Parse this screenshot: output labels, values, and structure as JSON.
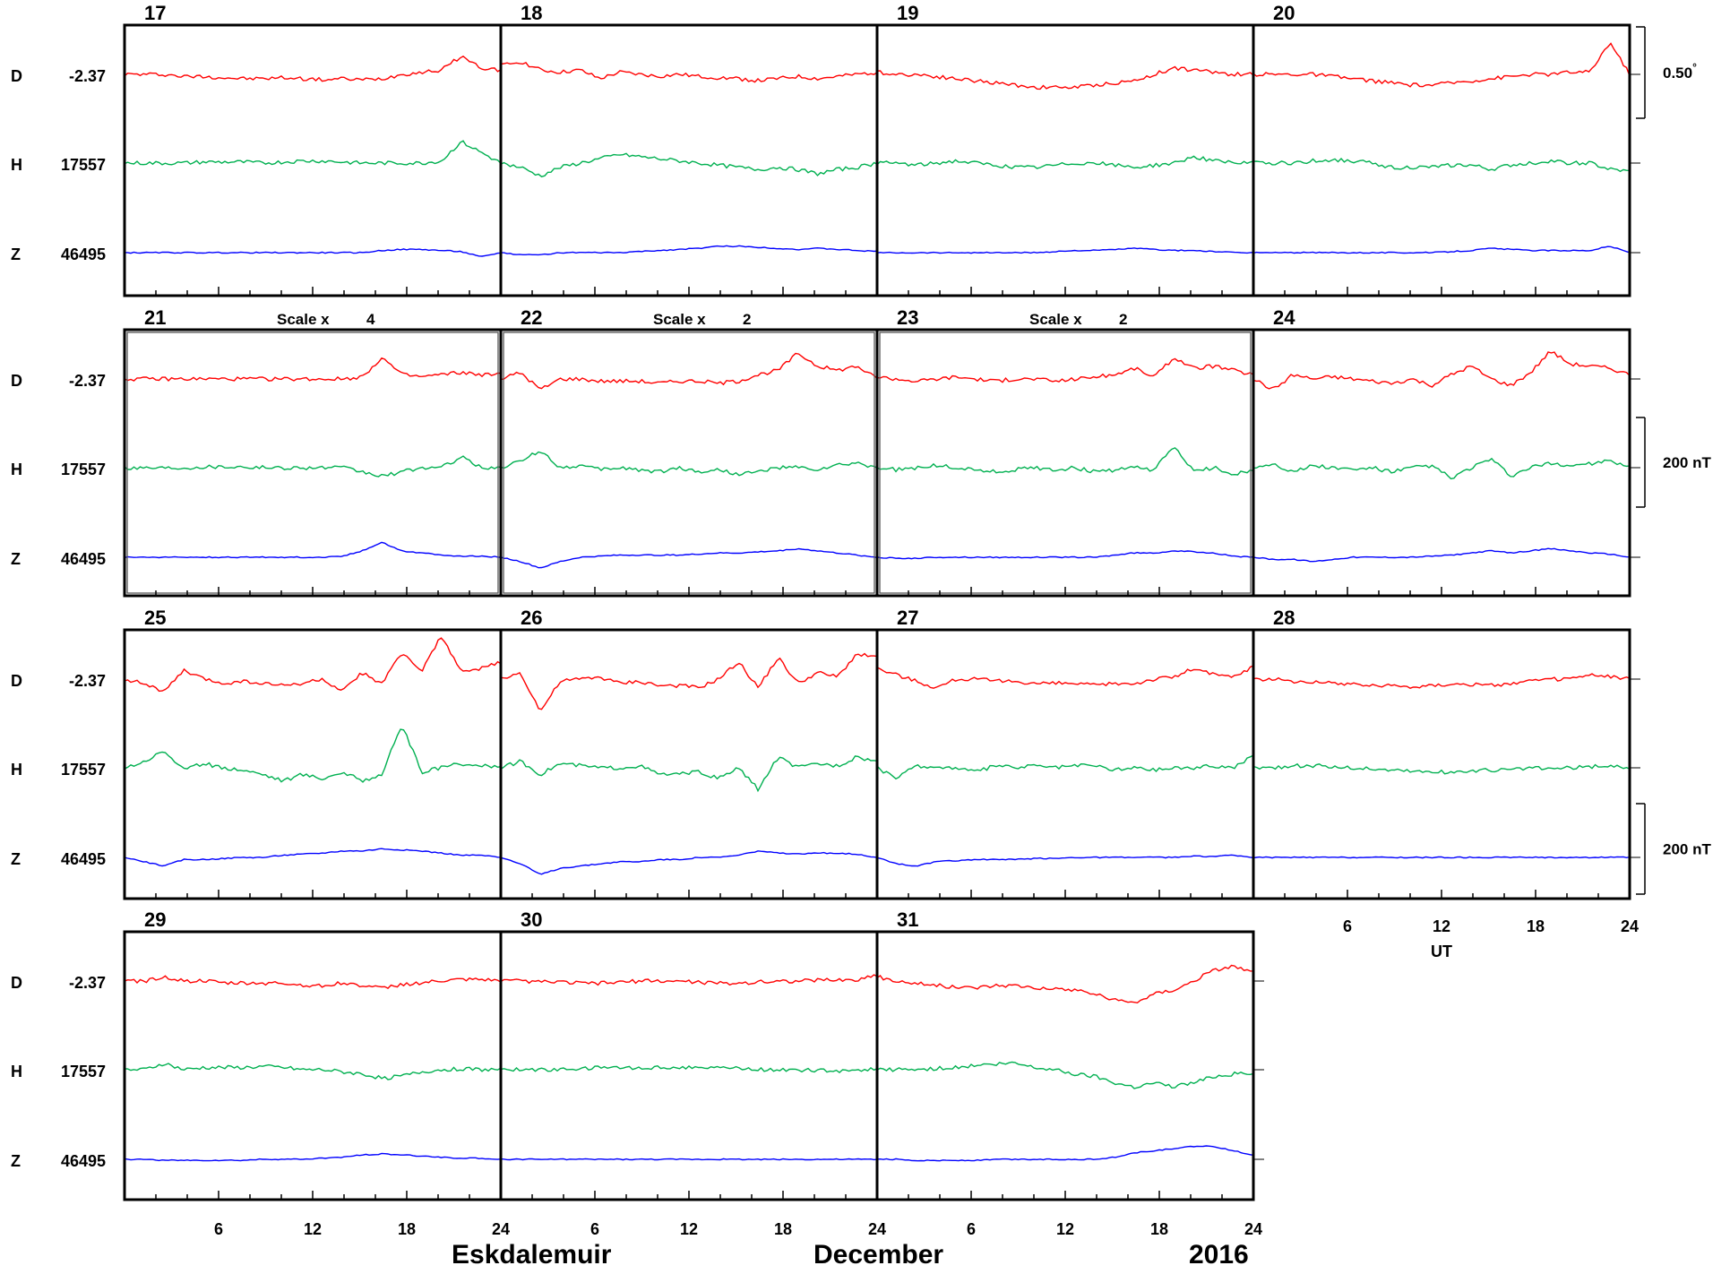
{
  "footer": {
    "station": "Eskdalemuir",
    "month": "December",
    "year": "2016"
  },
  "components": [
    {
      "name": "D",
      "baseline": "-2.37",
      "color": "#ff0000"
    },
    {
      "name": "H",
      "baseline": "17557",
      "color": "#00b050"
    },
    {
      "name": "Z",
      "baseline": "46495",
      "color": "#0000ff"
    }
  ],
  "scale_bars": [
    {
      "label": "0.50",
      "unit_mark": "°",
      "row": 0
    },
    {
      "label": "200 nT",
      "row": 1
    },
    {
      "label": "200 nT",
      "row": 2
    }
  ],
  "time_axis": {
    "label": "UT",
    "ticks": [
      "6",
      "12",
      "18",
      "24"
    ]
  },
  "chart_data": {
    "type": "line",
    "title": "",
    "xlabel": "UT",
    "xlim": [
      0,
      24
    ],
    "series": [
      {
        "name": "D",
        "baseline": -2.37
      },
      {
        "name": "H",
        "baseline": 17557
      },
      {
        "name": "Z",
        "baseline": 46495
      }
    ],
    "days": [
      {
        "day": "17",
        "D": [
          0,
          0,
          0,
          -0.1,
          -0.1,
          -0.15,
          -0.2,
          -0.2,
          -0.15,
          -0.2,
          -0.25,
          -0.2,
          -0.25,
          -0.2,
          0,
          0.1,
          0.2,
          0.85,
          0.3,
          0.2
        ],
        "H": [
          0,
          0,
          0,
          0,
          0.05,
          0.05,
          0.05,
          0,
          0.05,
          0.1,
          0.1,
          0.05,
          0,
          0,
          0,
          0,
          0.1,
          1.0,
          0.5,
          0
        ],
        "Z": [
          0,
          0,
          0,
          0,
          0,
          0,
          0,
          0,
          0,
          0,
          0,
          0,
          0,
          0.1,
          0.15,
          0.15,
          0.1,
          0.05,
          -0.2,
          0
        ]
      },
      {
        "day": "18",
        "D": [
          0.4,
          0.6,
          0.2,
          0.1,
          0.2,
          -0.2,
          0.1,
          0,
          -0.1,
          0,
          -0.1,
          -0.15,
          -0.2,
          -0.3,
          -0.2,
          -0.1,
          -0.2,
          -0.1,
          0,
          0.1
        ],
        "H": [
          0,
          -0.2,
          -0.6,
          -0.2,
          0,
          0.2,
          0.4,
          0.3,
          0.2,
          0.1,
          0,
          -0.1,
          -0.2,
          -0.3,
          -0.2,
          -0.3,
          -0.5,
          -0.3,
          -0.2,
          0
        ],
        "Z": [
          0,
          -0.1,
          -0.1,
          0,
          0,
          0,
          0,
          0.05,
          0.1,
          0.15,
          0.2,
          0.3,
          0.3,
          0.25,
          0.2,
          0.15,
          0.2,
          0.15,
          0.1,
          0.05
        ]
      },
      {
        "day": "19",
        "D": [
          0.1,
          0,
          0,
          -0.1,
          -0.2,
          -0.3,
          -0.4,
          -0.5,
          -0.6,
          -0.6,
          -0.6,
          -0.5,
          -0.4,
          -0.3,
          0,
          0.3,
          0.2,
          0.1,
          0,
          0
        ],
        "H": [
          0,
          0,
          -0.1,
          0,
          0.1,
          0,
          -0.1,
          -0.2,
          -0.2,
          -0.1,
          0,
          0,
          -0.1,
          -0.2,
          -0.1,
          0,
          0.3,
          0.1,
          0,
          0
        ],
        "Z": [
          0,
          0,
          0,
          0,
          0,
          0,
          0,
          0,
          0,
          0.05,
          0.1,
          0.1,
          0.15,
          0.2,
          0.15,
          0.1,
          0.1,
          0.05,
          0,
          0
        ]
      },
      {
        "day": "20",
        "D": [
          0,
          0,
          0,
          0,
          -0.1,
          -0.2,
          -0.3,
          -0.4,
          -0.5,
          -0.5,
          -0.4,
          -0.3,
          -0.2,
          -0.1,
          0,
          0,
          0.1,
          0.1,
          1.5,
          0
        ],
        "H": [
          0,
          0,
          0,
          0.1,
          0.15,
          0.1,
          0,
          -0.2,
          -0.2,
          -0.2,
          -0.1,
          -0.1,
          -0.3,
          -0.1,
          0,
          0.1,
          0,
          0,
          -0.3,
          -0.4
        ],
        "Z": [
          0,
          0,
          0,
          0,
          0,
          0,
          0,
          0,
          0,
          0,
          0.05,
          0.1,
          0.2,
          0.15,
          0.1,
          0.1,
          0.1,
          0.1,
          0.3,
          0
        ]
      },
      {
        "day": "21",
        "D": [
          0,
          0,
          0,
          0,
          0,
          0,
          0,
          0,
          0,
          0,
          0,
          0,
          0.1,
          1.0,
          0.2,
          0.1,
          0.2,
          0.3,
          0.2,
          0.2
        ],
        "H": [
          0,
          0,
          0,
          0,
          0.05,
          0.05,
          0.05,
          0,
          0,
          0,
          0,
          0,
          -0.2,
          -0.4,
          -0.2,
          0,
          0,
          0.5,
          0,
          0
        ],
        "Z": [
          0,
          0,
          0,
          0,
          0,
          0,
          0,
          0,
          0,
          0,
          0,
          0.05,
          0.3,
          0.7,
          0.3,
          0.2,
          0.1,
          0.05,
          0.05,
          0
        ]
      },
      {
        "day": "22",
        "D": [
          0,
          0.3,
          -0.5,
          0,
          0,
          -0.1,
          -0.1,
          -0.1,
          -0.2,
          -0.1,
          -0.1,
          -0.2,
          -0.1,
          0.2,
          0.4,
          1.2,
          0.6,
          0.4,
          0.6,
          0
        ],
        "H": [
          0,
          0.3,
          0.8,
          0,
          0.1,
          -0.1,
          0,
          -0.1,
          -0.2,
          0,
          -0.2,
          -0.1,
          -0.3,
          -0.2,
          0,
          0,
          -0.1,
          0.1,
          0.2,
          0
        ],
        "Z": [
          0,
          -0.2,
          -0.5,
          -0.2,
          0,
          0.05,
          0.1,
          0.1,
          0.1,
          0.1,
          0.15,
          0.2,
          0.2,
          0.25,
          0.3,
          0.4,
          0.3,
          0.2,
          0.1,
          0
        ]
      },
      {
        "day": "23",
        "D": [
          0.1,
          0,
          -0.1,
          0,
          0.1,
          0,
          -0.1,
          0,
          0,
          -0.1,
          0,
          0.1,
          0.2,
          0.5,
          0.1,
          1.0,
          0.5,
          0.6,
          0.4,
          0.2
        ],
        "H": [
          0,
          -0.1,
          0,
          0.1,
          0,
          -0.1,
          -0.2,
          -0.1,
          0,
          -0.1,
          0,
          -0.2,
          -0.1,
          0,
          -0.1,
          1.0,
          -0.2,
          0,
          -0.3,
          -0.1
        ],
        "Z": [
          0,
          -0.05,
          -0.05,
          0,
          0,
          0,
          0,
          0,
          0,
          0,
          0,
          0,
          0.1,
          0.2,
          0.2,
          0.3,
          0.25,
          0.2,
          0.05,
          0
        ]
      },
      {
        "day": "24",
        "D": [
          0,
          -0.5,
          0.2,
          0,
          0.1,
          0,
          -0.1,
          -0.2,
          0,
          -0.3,
          0.2,
          0.6,
          0,
          -0.3,
          0.3,
          1.3,
          0.7,
          0.6,
          0.5,
          0.2
        ],
        "H": [
          0,
          0.2,
          -0.2,
          0.1,
          0,
          -0.1,
          0,
          -0.2,
          0,
          0.1,
          -0.5,
          0,
          0.4,
          -0.4,
          0,
          0.2,
          0.1,
          0.2,
          0.3,
          0
        ],
        "Z": [
          0,
          -0.1,
          -0.1,
          -0.2,
          -0.1,
          0,
          0,
          0,
          0,
          0.05,
          0.1,
          0.2,
          0.3,
          0.2,
          0.3,
          0.4,
          0.3,
          0.2,
          0.15,
          0
        ]
      },
      {
        "day": "25",
        "D": [
          0,
          -0.2,
          -0.6,
          0.4,
          0,
          -0.2,
          -0.1,
          -0.2,
          -0.3,
          -0.2,
          0,
          -0.6,
          0.3,
          -0.2,
          1.2,
          0.4,
          2.0,
          0.3,
          0.5,
          0.8
        ],
        "H": [
          0,
          0.3,
          0.8,
          -0.1,
          0.2,
          0,
          -0.1,
          -0.3,
          -0.6,
          -0.3,
          -0.5,
          -0.2,
          -0.6,
          -0.3,
          2.0,
          -0.2,
          0,
          0.2,
          0.1,
          0
        ],
        "Z": [
          0,
          -0.2,
          -0.4,
          -0.1,
          -0.1,
          -0.05,
          0,
          0,
          0.1,
          0.15,
          0.2,
          0.3,
          0.3,
          0.4,
          0.35,
          0.3,
          0.2,
          0.1,
          0.1,
          0
        ]
      },
      {
        "day": "26",
        "D": [
          0,
          0.3,
          -1.5,
          -0.1,
          0,
          0.1,
          -0.2,
          -0.1,
          -0.3,
          -0.3,
          -0.4,
          0,
          0.8,
          -0.4,
          1.0,
          -0.2,
          0.3,
          0.1,
          1.2,
          1.0
        ],
        "H": [
          0,
          0.3,
          -0.3,
          0.2,
          0.1,
          0,
          0,
          0.1,
          -0.3,
          -0.3,
          -0.2,
          -0.5,
          0,
          -1.0,
          0.5,
          0,
          0.2,
          0.1,
          0.5,
          0.3
        ],
        "Z": [
          0,
          -0.3,
          -0.8,
          -0.5,
          -0.4,
          -0.3,
          -0.2,
          -0.2,
          -0.1,
          -0.1,
          0,
          0,
          0.1,
          0.3,
          0.2,
          0.15,
          0.2,
          0.2,
          0.15,
          0
        ]
      },
      {
        "day": "27",
        "D": [
          0.5,
          0.2,
          -0.1,
          -0.4,
          0,
          0,
          -0.1,
          -0.1,
          -0.2,
          -0.2,
          -0.2,
          -0.3,
          -0.2,
          -0.2,
          0,
          0.1,
          0.5,
          0.2,
          0.1,
          0.6
        ],
        "H": [
          0,
          -0.5,
          0.1,
          0,
          0,
          -0.2,
          0.1,
          0,
          0.1,
          0,
          0.1,
          0.1,
          -0.1,
          0,
          -0.1,
          0,
          0,
          0.1,
          0,
          0.6
        ],
        "Z": [
          0,
          -0.3,
          -0.4,
          -0.2,
          -0.15,
          -0.1,
          -0.1,
          -0.1,
          -0.05,
          -0.05,
          0,
          0,
          0,
          0,
          0,
          0,
          0.05,
          0.05,
          0.1,
          0
        ]
      },
      {
        "day": "28",
        "D": [
          0,
          0,
          -0.1,
          -0.1,
          -0.2,
          -0.2,
          -0.3,
          -0.3,
          -0.35,
          -0.3,
          -0.2,
          -0.25,
          -0.3,
          -0.2,
          -0.1,
          0,
          0,
          0.2,
          0.1,
          0.05
        ],
        "H": [
          0,
          0,
          0.1,
          0.1,
          0.05,
          0,
          -0.05,
          -0.1,
          -0.15,
          -0.2,
          -0.2,
          -0.15,
          -0.1,
          -0.1,
          0,
          -0.05,
          0,
          0.05,
          0.1,
          0
        ],
        "Z": [
          0,
          0,
          0,
          0,
          0,
          0,
          0,
          0,
          0,
          0,
          0,
          0,
          0,
          0,
          0,
          0,
          0,
          0,
          0,
          0
        ]
      },
      {
        "day": "29",
        "D": [
          0,
          0,
          0.2,
          0,
          0,
          -0.1,
          -0.1,
          -0.1,
          -0.1,
          -0.2,
          -0.2,
          -0.1,
          -0.2,
          -0.35,
          -0.15,
          -0.1,
          0,
          0.05,
          0.05,
          0
        ],
        "H": [
          0,
          0,
          0.3,
          0,
          0.1,
          0.1,
          0.1,
          0.15,
          0.1,
          0,
          0,
          -0.1,
          -0.2,
          -0.4,
          -0.3,
          -0.1,
          0,
          0.05,
          0,
          0
        ],
        "Z": [
          0,
          0,
          -0.05,
          -0.05,
          -0.05,
          -0.05,
          -0.05,
          0,
          0,
          0,
          0.05,
          0.1,
          0.2,
          0.25,
          0.2,
          0.15,
          0.1,
          0.05,
          0.05,
          0
        ]
      },
      {
        "day": "30",
        "D": [
          0,
          0,
          -0.05,
          -0.05,
          -0.1,
          -0.1,
          -0.05,
          0,
          0,
          0,
          -0.05,
          -0.1,
          -0.1,
          -0.05,
          0,
          0,
          0.05,
          0.05,
          0.05,
          0.3
        ],
        "H": [
          0,
          0,
          0,
          0,
          0.05,
          0.1,
          0.1,
          0.1,
          0.1,
          0.1,
          0.15,
          0.1,
          0.05,
          0,
          0,
          0,
          -0.05,
          -0.05,
          0,
          0
        ],
        "Z": [
          0,
          0,
          0,
          0,
          0,
          0,
          0,
          0,
          0,
          0,
          0,
          0,
          0,
          0,
          0,
          0,
          0,
          0,
          0,
          0
        ]
      },
      {
        "day": "31",
        "D": [
          0.2,
          0,
          -0.1,
          -0.2,
          -0.3,
          -0.3,
          -0.2,
          -0.2,
          -0.3,
          -0.4,
          -0.4,
          -0.6,
          -0.9,
          -1.0,
          -0.6,
          -0.4,
          0,
          0.5,
          0.7,
          0.4
        ],
        "H": [
          0,
          0,
          0,
          0.05,
          0.1,
          0.2,
          0.25,
          0.3,
          0.1,
          0,
          -0.2,
          -0.3,
          -0.6,
          -0.8,
          -0.6,
          -0.8,
          -0.6,
          -0.3,
          -0.2,
          -0.2
        ],
        "Z": [
          0,
          0,
          -0.05,
          -0.05,
          -0.05,
          -0.05,
          0,
          0,
          0,
          0,
          0,
          0,
          0.1,
          0.3,
          0.4,
          0.5,
          0.6,
          0.6,
          0.4,
          0.2
        ]
      }
    ],
    "grid": false
  },
  "colors": {
    "frame": "#000000",
    "D": "#ff0000",
    "H": "#00b050",
    "Z": "#0000ff"
  }
}
